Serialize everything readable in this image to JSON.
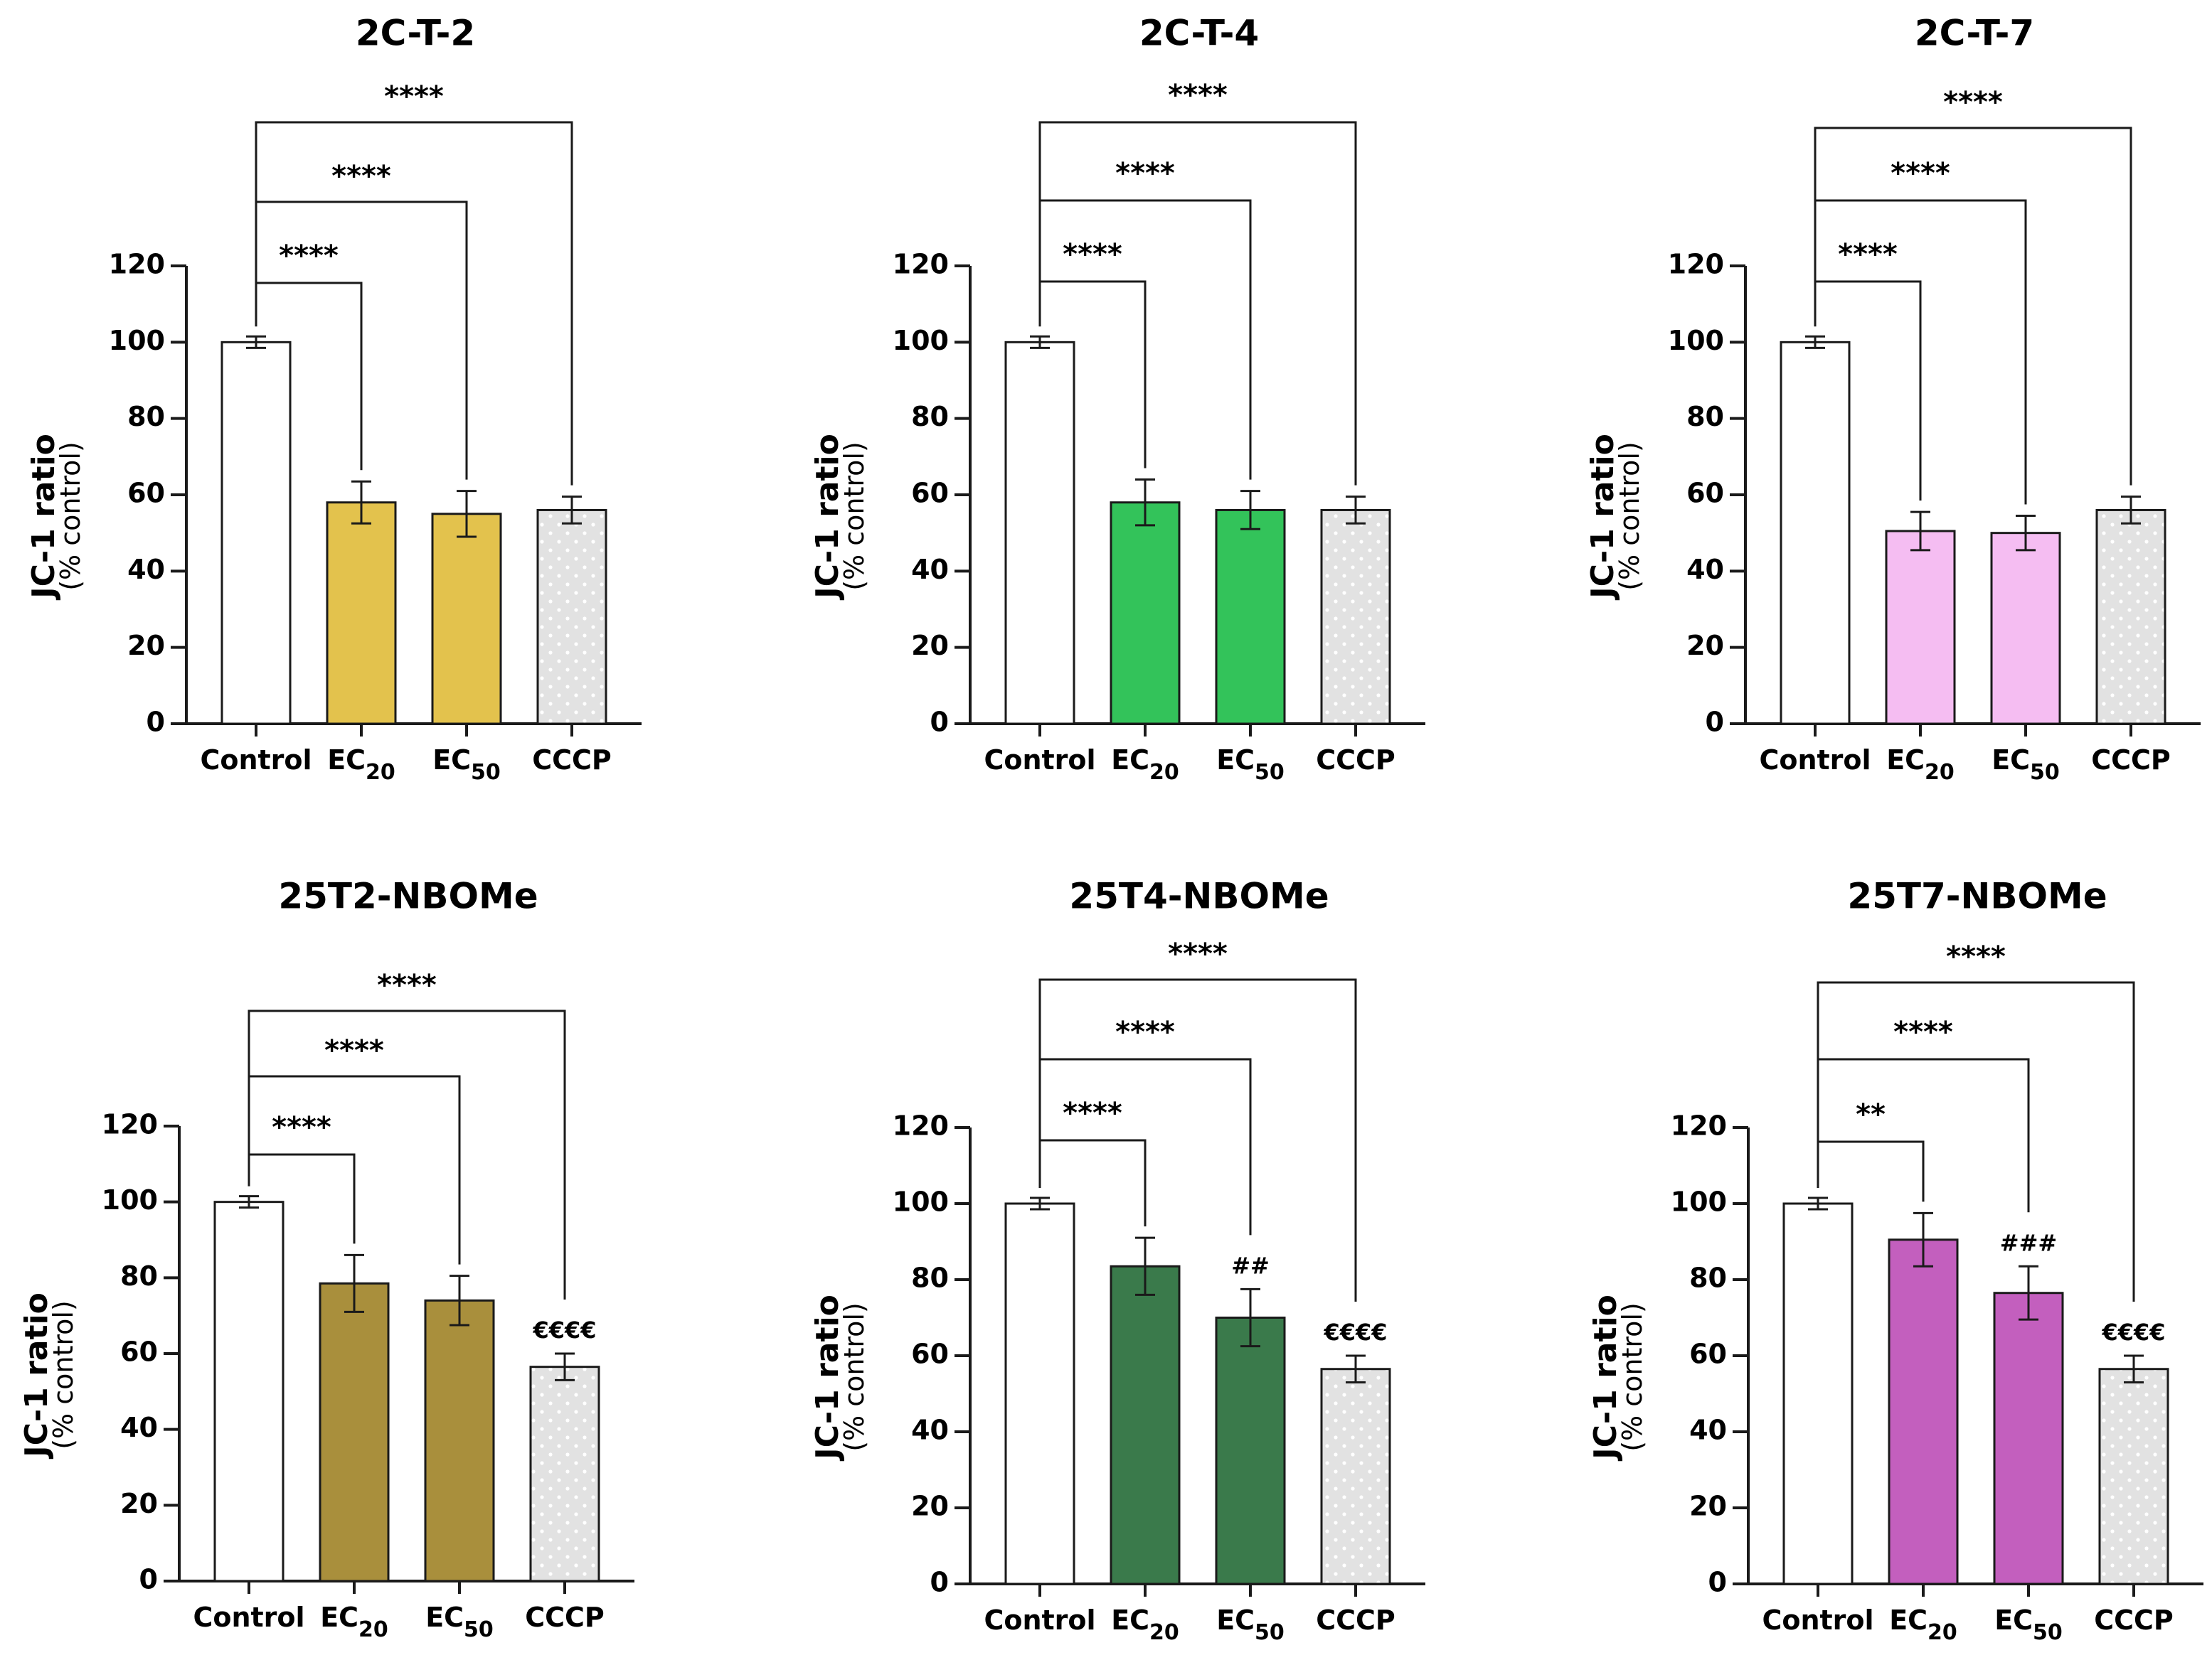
{
  "colors": {
    "control": "#ffffff",
    "cccp": "#e2e2e2",
    "cccp_dots": "#ffffff",
    "axis": "#1a1a1a"
  },
  "chart_data": [
    {
      "type": "bar",
      "title": "2C-T-2",
      "ylabel": "JC-1 ratio",
      "ylabel_sub": "(% control)",
      "ylim": [
        0,
        120
      ],
      "yticks": [
        0,
        20,
        40,
        60,
        80,
        100,
        120
      ],
      "categories": [
        {
          "label": "Control",
          "sub": ""
        },
        {
          "label": "EC",
          "sub": "20"
        },
        {
          "label": "EC",
          "sub": "50"
        },
        {
          "label": "CCCP",
          "sub": ""
        }
      ],
      "values": [
        100,
        58,
        55,
        56
      ],
      "errors": [
        1.5,
        5.5,
        6,
        3.5
      ],
      "fill": [
        "#ffffff",
        "#e3c24d",
        "#e3c24d",
        "#e2e2e2"
      ],
      "annotations": [
        "",
        "",
        "",
        ""
      ],
      "comparisons": [
        {
          "to": 1,
          "label": "****"
        },
        {
          "to": 2,
          "label": "****"
        },
        {
          "to": 3,
          "label": "****"
        }
      ]
    },
    {
      "type": "bar",
      "title": "2C-T-4",
      "ylabel": "JC-1 ratio",
      "ylabel_sub": "(% control)",
      "ylim": [
        0,
        120
      ],
      "yticks": [
        0,
        20,
        40,
        60,
        80,
        100,
        120
      ],
      "categories": [
        {
          "label": "Control",
          "sub": ""
        },
        {
          "label": "EC",
          "sub": "20"
        },
        {
          "label": "EC",
          "sub": "50"
        },
        {
          "label": "CCCP",
          "sub": ""
        }
      ],
      "values": [
        100,
        58,
        56,
        56
      ],
      "errors": [
        1.5,
        6,
        5,
        3.5
      ],
      "fill": [
        "#ffffff",
        "#33c35a",
        "#33c35a",
        "#e2e2e2"
      ],
      "annotations": [
        "",
        "",
        "",
        ""
      ],
      "comparisons": [
        {
          "to": 1,
          "label": "****"
        },
        {
          "to": 2,
          "label": "****"
        },
        {
          "to": 3,
          "label": "****"
        }
      ]
    },
    {
      "type": "bar",
      "title": "2C-T-7",
      "ylabel": "JC-1 ratio",
      "ylabel_sub": "(% control)",
      "ylim": [
        0,
        120
      ],
      "yticks": [
        0,
        20,
        40,
        60,
        80,
        100,
        120
      ],
      "categories": [
        {
          "label": "Control",
          "sub": ""
        },
        {
          "label": "EC",
          "sub": "20"
        },
        {
          "label": "EC",
          "sub": "50"
        },
        {
          "label": "CCCP",
          "sub": ""
        }
      ],
      "values": [
        100,
        50.5,
        50,
        56
      ],
      "errors": [
        1.5,
        5,
        4.5,
        3.5
      ],
      "fill": [
        "#ffffff",
        "#f5bdf2",
        "#f5bdf2",
        "#e2e2e2"
      ],
      "annotations": [
        "",
        "",
        "",
        ""
      ],
      "comparisons": [
        {
          "to": 1,
          "label": "****"
        },
        {
          "to": 2,
          "label": "****"
        },
        {
          "to": 3,
          "label": "****"
        }
      ]
    },
    {
      "type": "bar",
      "title": "25T2-NBOMe",
      "ylabel": "JC-1 ratio",
      "ylabel_sub": "(% control)",
      "ylim": [
        0,
        120
      ],
      "yticks": [
        0,
        20,
        40,
        60,
        80,
        100,
        120
      ],
      "categories": [
        {
          "label": "Control",
          "sub": ""
        },
        {
          "label": "EC",
          "sub": "20"
        },
        {
          "label": "EC",
          "sub": "50"
        },
        {
          "label": "CCCP",
          "sub": ""
        }
      ],
      "values": [
        100,
        78.5,
        74,
        56.5
      ],
      "errors": [
        1.5,
        7.5,
        6.5,
        3.5
      ],
      "fill": [
        "#ffffff",
        "#a98f3c",
        "#a98f3c",
        "#e2e2e2"
      ],
      "annotations": [
        "",
        "",
        "",
        "€€€€"
      ],
      "comparisons": [
        {
          "to": 1,
          "label": "****"
        },
        {
          "to": 2,
          "label": "****"
        },
        {
          "to": 3,
          "label": "****"
        }
      ]
    },
    {
      "type": "bar",
      "title": "25T4-NBOMe",
      "ylabel": "JC-1 ratio",
      "ylabel_sub": "(% control)",
      "ylim": [
        0,
        120
      ],
      "yticks": [
        0,
        20,
        40,
        60,
        80,
        100,
        120
      ],
      "categories": [
        {
          "label": "Control",
          "sub": ""
        },
        {
          "label": "EC",
          "sub": "20"
        },
        {
          "label": "EC",
          "sub": "50"
        },
        {
          "label": "CCCP",
          "sub": ""
        }
      ],
      "values": [
        100,
        83.5,
        70,
        56.5
      ],
      "errors": [
        1.5,
        7.5,
        7.5,
        3.5
      ],
      "fill": [
        "#ffffff",
        "#3a7a4b",
        "#3a7a4b",
        "#e2e2e2"
      ],
      "annotations": [
        "",
        "",
        "##",
        "€€€€"
      ],
      "comparisons": [
        {
          "to": 1,
          "label": "****"
        },
        {
          "to": 2,
          "label": "****"
        },
        {
          "to": 3,
          "label": "****"
        }
      ]
    },
    {
      "type": "bar",
      "title": "25T7-NBOMe",
      "ylabel": "JC-1 ratio",
      "ylabel_sub": "(% control)",
      "ylim": [
        0,
        120
      ],
      "yticks": [
        0,
        20,
        40,
        60,
        80,
        100,
        120
      ],
      "categories": [
        {
          "label": "Control",
          "sub": ""
        },
        {
          "label": "EC",
          "sub": "20"
        },
        {
          "label": "EC",
          "sub": "50"
        },
        {
          "label": "CCCP",
          "sub": ""
        }
      ],
      "values": [
        100,
        90.5,
        76.5,
        56.5
      ],
      "errors": [
        1.5,
        7,
        7,
        3.5
      ],
      "fill": [
        "#ffffff",
        "#c35fbe",
        "#c35fbe",
        "#e2e2e2"
      ],
      "annotations": [
        "",
        "",
        "###",
        "€€€€"
      ],
      "comparisons": [
        {
          "to": 1,
          "label": "**"
        },
        {
          "to": 2,
          "label": "****"
        },
        {
          "to": 3,
          "label": "****"
        }
      ]
    }
  ]
}
